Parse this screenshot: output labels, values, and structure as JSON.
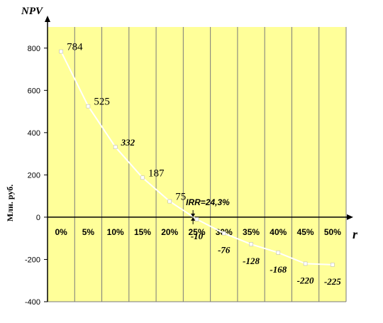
{
  "chart_data": {
    "type": "line",
    "title": "",
    "x_axis_name": "r",
    "y_axis_name": "NPV",
    "ylabel": "Млн. руб.",
    "categories": [
      "0%",
      "5%",
      "10%",
      "15%",
      "20%",
      "25%",
      "30%",
      "35%",
      "40%",
      "45%",
      "50%"
    ],
    "x": [
      0,
      5,
      10,
      15,
      20,
      25,
      30,
      35,
      40,
      45,
      50
    ],
    "values": [
      784,
      525,
      332,
      187,
      75,
      -10,
      -76,
      -128,
      -168,
      -220,
      -225
    ],
    "point_labels": [
      "784",
      "525",
      "332",
      "187",
      "75",
      "-10",
      "-76",
      "-128",
      "-168",
      "-220",
      "-225"
    ],
    "point_label_bold": [
      false,
      false,
      true,
      false,
      false,
      true,
      true,
      true,
      true,
      true,
      true
    ],
    "yticks": [
      -400,
      -200,
      0,
      200,
      400,
      600,
      800
    ],
    "ylim": [
      -400,
      900
    ],
    "annotation": {
      "text": "IRR=24,3%",
      "x": 24.3,
      "y": 0
    },
    "grid": "vertical",
    "colors": {
      "plot_background": "#FFFF99",
      "gridline": "#7A7A7A",
      "line": "#FFFFFF"
    }
  }
}
